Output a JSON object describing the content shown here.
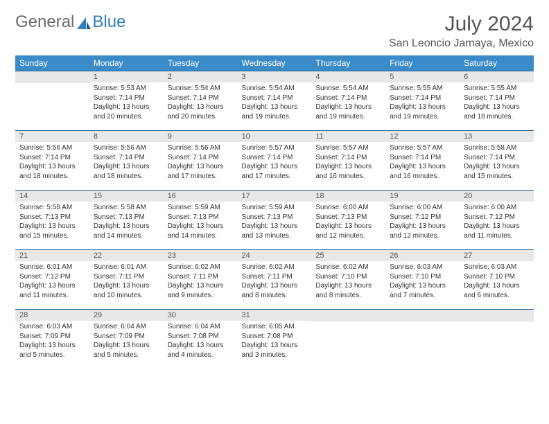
{
  "logo": {
    "text1": "General",
    "text2": "Blue"
  },
  "title": "July 2024",
  "location": "San Leoncio Jamaya, Mexico",
  "colors": {
    "header_bg": "#3b8bc9",
    "header_text": "#ffffff",
    "row_divider": "#1e5f8f",
    "daynum_bg": "#e8e8e8",
    "text": "#333333",
    "logo_gray": "#6b6b6b",
    "logo_blue": "#2d7fc1",
    "background": "#ffffff"
  },
  "typography": {
    "title_fontsize": 30,
    "location_fontsize": 16,
    "weekday_fontsize": 12,
    "daynum_fontsize": 11,
    "body_fontsize": 10
  },
  "weekdays": [
    "Sunday",
    "Monday",
    "Tuesday",
    "Wednesday",
    "Thursday",
    "Friday",
    "Saturday"
  ],
  "weeks": [
    [
      null,
      {
        "n": "1",
        "sr": "Sunrise: 5:53 AM",
        "ss": "Sunset: 7:14 PM",
        "dl1": "Daylight: 13 hours",
        "dl2": "and 20 minutes."
      },
      {
        "n": "2",
        "sr": "Sunrise: 5:54 AM",
        "ss": "Sunset: 7:14 PM",
        "dl1": "Daylight: 13 hours",
        "dl2": "and 20 minutes."
      },
      {
        "n": "3",
        "sr": "Sunrise: 5:54 AM",
        "ss": "Sunset: 7:14 PM",
        "dl1": "Daylight: 13 hours",
        "dl2": "and 19 minutes."
      },
      {
        "n": "4",
        "sr": "Sunrise: 5:54 AM",
        "ss": "Sunset: 7:14 PM",
        "dl1": "Daylight: 13 hours",
        "dl2": "and 19 minutes."
      },
      {
        "n": "5",
        "sr": "Sunrise: 5:55 AM",
        "ss": "Sunset: 7:14 PM",
        "dl1": "Daylight: 13 hours",
        "dl2": "and 19 minutes."
      },
      {
        "n": "6",
        "sr": "Sunrise: 5:55 AM",
        "ss": "Sunset: 7:14 PM",
        "dl1": "Daylight: 13 hours",
        "dl2": "and 18 minutes."
      }
    ],
    [
      {
        "n": "7",
        "sr": "Sunrise: 5:56 AM",
        "ss": "Sunset: 7:14 PM",
        "dl1": "Daylight: 13 hours",
        "dl2": "and 18 minutes."
      },
      {
        "n": "8",
        "sr": "Sunrise: 5:56 AM",
        "ss": "Sunset: 7:14 PM",
        "dl1": "Daylight: 13 hours",
        "dl2": "and 18 minutes."
      },
      {
        "n": "9",
        "sr": "Sunrise: 5:56 AM",
        "ss": "Sunset: 7:14 PM",
        "dl1": "Daylight: 13 hours",
        "dl2": "and 17 minutes."
      },
      {
        "n": "10",
        "sr": "Sunrise: 5:57 AM",
        "ss": "Sunset: 7:14 PM",
        "dl1": "Daylight: 13 hours",
        "dl2": "and 17 minutes."
      },
      {
        "n": "11",
        "sr": "Sunrise: 5:57 AM",
        "ss": "Sunset: 7:14 PM",
        "dl1": "Daylight: 13 hours",
        "dl2": "and 16 minutes."
      },
      {
        "n": "12",
        "sr": "Sunrise: 5:57 AM",
        "ss": "Sunset: 7:14 PM",
        "dl1": "Daylight: 13 hours",
        "dl2": "and 16 minutes."
      },
      {
        "n": "13",
        "sr": "Sunrise: 5:58 AM",
        "ss": "Sunset: 7:14 PM",
        "dl1": "Daylight: 13 hours",
        "dl2": "and 15 minutes."
      }
    ],
    [
      {
        "n": "14",
        "sr": "Sunrise: 5:58 AM",
        "ss": "Sunset: 7:13 PM",
        "dl1": "Daylight: 13 hours",
        "dl2": "and 15 minutes."
      },
      {
        "n": "15",
        "sr": "Sunrise: 5:58 AM",
        "ss": "Sunset: 7:13 PM",
        "dl1": "Daylight: 13 hours",
        "dl2": "and 14 minutes."
      },
      {
        "n": "16",
        "sr": "Sunrise: 5:59 AM",
        "ss": "Sunset: 7:13 PM",
        "dl1": "Daylight: 13 hours",
        "dl2": "and 14 minutes."
      },
      {
        "n": "17",
        "sr": "Sunrise: 5:59 AM",
        "ss": "Sunset: 7:13 PM",
        "dl1": "Daylight: 13 hours",
        "dl2": "and 13 minutes."
      },
      {
        "n": "18",
        "sr": "Sunrise: 6:00 AM",
        "ss": "Sunset: 7:13 PM",
        "dl1": "Daylight: 13 hours",
        "dl2": "and 12 minutes."
      },
      {
        "n": "19",
        "sr": "Sunrise: 6:00 AM",
        "ss": "Sunset: 7:12 PM",
        "dl1": "Daylight: 13 hours",
        "dl2": "and 12 minutes."
      },
      {
        "n": "20",
        "sr": "Sunrise: 6:00 AM",
        "ss": "Sunset: 7:12 PM",
        "dl1": "Daylight: 13 hours",
        "dl2": "and 11 minutes."
      }
    ],
    [
      {
        "n": "21",
        "sr": "Sunrise: 6:01 AM",
        "ss": "Sunset: 7:12 PM",
        "dl1": "Daylight: 13 hours",
        "dl2": "and 11 minutes."
      },
      {
        "n": "22",
        "sr": "Sunrise: 6:01 AM",
        "ss": "Sunset: 7:11 PM",
        "dl1": "Daylight: 13 hours",
        "dl2": "and 10 minutes."
      },
      {
        "n": "23",
        "sr": "Sunrise: 6:02 AM",
        "ss": "Sunset: 7:11 PM",
        "dl1": "Daylight: 13 hours",
        "dl2": "and 9 minutes."
      },
      {
        "n": "24",
        "sr": "Sunrise: 6:02 AM",
        "ss": "Sunset: 7:11 PM",
        "dl1": "Daylight: 13 hours",
        "dl2": "and 8 minutes."
      },
      {
        "n": "25",
        "sr": "Sunrise: 6:02 AM",
        "ss": "Sunset: 7:10 PM",
        "dl1": "Daylight: 13 hours",
        "dl2": "and 8 minutes."
      },
      {
        "n": "26",
        "sr": "Sunrise: 6:03 AM",
        "ss": "Sunset: 7:10 PM",
        "dl1": "Daylight: 13 hours",
        "dl2": "and 7 minutes."
      },
      {
        "n": "27",
        "sr": "Sunrise: 6:03 AM",
        "ss": "Sunset: 7:10 PM",
        "dl1": "Daylight: 13 hours",
        "dl2": "and 6 minutes."
      }
    ],
    [
      {
        "n": "28",
        "sr": "Sunrise: 6:03 AM",
        "ss": "Sunset: 7:09 PM",
        "dl1": "Daylight: 13 hours",
        "dl2": "and 5 minutes."
      },
      {
        "n": "29",
        "sr": "Sunrise: 6:04 AM",
        "ss": "Sunset: 7:09 PM",
        "dl1": "Daylight: 13 hours",
        "dl2": "and 5 minutes."
      },
      {
        "n": "30",
        "sr": "Sunrise: 6:04 AM",
        "ss": "Sunset: 7:08 PM",
        "dl1": "Daylight: 13 hours",
        "dl2": "and 4 minutes."
      },
      {
        "n": "31",
        "sr": "Sunrise: 6:05 AM",
        "ss": "Sunset: 7:08 PM",
        "dl1": "Daylight: 13 hours",
        "dl2": "and 3 minutes."
      },
      null,
      null,
      null
    ]
  ]
}
